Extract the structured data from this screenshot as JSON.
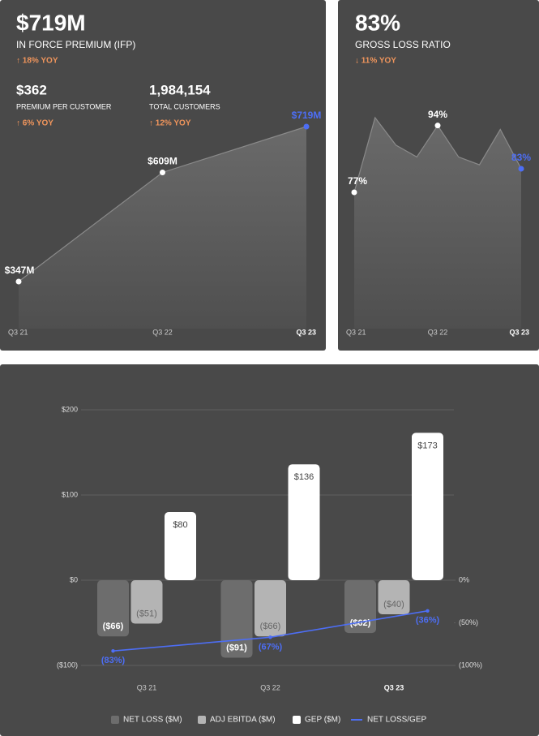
{
  "chart_data": [
    {
      "type": "area",
      "kpis": [
        {
          "value": "$719M",
          "label": "IN FORCE PREMIUM (IFP)",
          "change": "↑ 18% YOY"
        },
        {
          "value": "$362",
          "label": "PREMIUM PER CUSTOMER",
          "change": "↑ 6% YOY"
        },
        {
          "value": "1,984,154",
          "label": "TOTAL CUSTOMERS",
          "change": "↑ 12% YOY"
        }
      ],
      "categories": [
        "Q3 21",
        "Q3 22",
        "Q3 23"
      ],
      "values": [
        347,
        609,
        719
      ],
      "value_labels": [
        "$347M",
        "$609M",
        "$719M"
      ],
      "color": "#8a8a8a",
      "highlight_color": "#4d6ef5",
      "change_color": "#f0955c"
    },
    {
      "type": "area",
      "kpis": [
        {
          "value": "83%",
          "label": "GROSS LOSS RATIO",
          "change": "↓ 11% YOY"
        }
      ],
      "categories": [
        "Q3 21",
        null,
        null,
        null,
        "Q3 22",
        null,
        null,
        null,
        "Q3 23"
      ],
      "values": [
        77,
        96,
        89,
        86,
        94,
        86,
        84,
        93,
        83
      ],
      "value_labels": [
        "77%",
        null,
        null,
        null,
        "94%",
        null,
        null,
        null,
        "83%"
      ],
      "color": "#8a8a8a",
      "highlight_color": "#4d6ef5",
      "change_color": "#f0955c"
    },
    {
      "type": "bar",
      "categories": [
        "Q3 21",
        "Q3 22",
        "Q3 23"
      ],
      "series": [
        {
          "name": "NET LOSS ($M)",
          "color": "#6d6d6d",
          "values": [
            -66,
            -91,
            -62
          ],
          "value_labels": [
            "($66)",
            "($91)",
            "($62)"
          ]
        },
        {
          "name": "ADJ EBITDA ($M)",
          "color": "#b4b4b4",
          "values": [
            -51,
            -66,
            -40
          ],
          "value_labels": [
            "($51)",
            "($66)",
            "($40)"
          ]
        },
        {
          "name": "GEP ($M)",
          "color": "#ffffff",
          "values": [
            80,
            136,
            173
          ],
          "value_labels": [
            "$80",
            "$136",
            "$173"
          ]
        },
        {
          "name": "NET LOSS/GEP",
          "color": "#4d6ef5",
          "type": "line",
          "axis": "y2",
          "values": [
            -83,
            -67,
            -36
          ],
          "value_labels": [
            "(83%)",
            "(67%)",
            "(36%)"
          ]
        }
      ],
      "ylim": [
        -100,
        200
      ],
      "yticks": [
        {
          "value": 200,
          "label": "$200"
        },
        {
          "value": 100,
          "label": "$100"
        },
        {
          "value": 0,
          "label": "$0"
        },
        {
          "value": -100,
          "label": "($100)"
        }
      ],
      "y2lim": [
        -100,
        200
      ],
      "y2ticks": [
        {
          "value": 0,
          "label": "0%"
        },
        {
          "value": -50,
          "label": "(50%)"
        },
        {
          "value": -100,
          "label": "(100%)"
        }
      ],
      "grid": true
    }
  ]
}
